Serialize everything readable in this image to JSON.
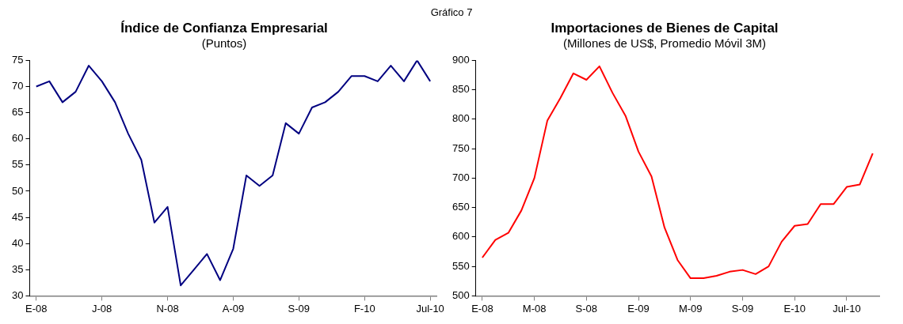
{
  "chart_data": [
    {
      "type": "line",
      "title": "Índice de Confianza Empresarial",
      "subtitle": "(Puntos)",
      "annotations": [
        "Gráfico 7"
      ],
      "categories": [
        "E-08",
        null,
        null,
        null,
        null,
        "J-08",
        null,
        null,
        null,
        null,
        "N-08",
        null,
        null,
        null,
        null,
        "A-09",
        null,
        null,
        null,
        null,
        "S-09",
        null,
        null,
        null,
        null,
        "F-10",
        null,
        null,
        null,
        null,
        "Jul-10"
      ],
      "series": [
        {
          "color": "#000080",
          "values": [
            70,
            71,
            67,
            69,
            74,
            71,
            67,
            61,
            56,
            44,
            47,
            32,
            35,
            38,
            33,
            39,
            53,
            51,
            53,
            63,
            61,
            66,
            67,
            69,
            72,
            72,
            71,
            74,
            71,
            75,
            71
          ]
        }
      ],
      "ylim": [
        30,
        75
      ],
      "yticks": [
        30,
        35,
        40,
        45,
        50,
        55,
        60,
        65,
        70,
        75
      ],
      "grid": false,
      "legend": false,
      "marker": "none"
    },
    {
      "type": "line",
      "title": "Importaciones de Bienes de Capital",
      "subtitle": "(Millones de US$, Promedio Móvil 3M)",
      "categories": [
        "E-08",
        null,
        null,
        null,
        "M-08",
        null,
        null,
        null,
        "S-08",
        null,
        null,
        null,
        "E-09",
        null,
        null,
        null,
        "M-09",
        null,
        null,
        null,
        "S-09",
        null,
        null,
        null,
        "E-10",
        null,
        null,
        null,
        "Jul-10",
        null,
        null
      ],
      "series": [
        {
          "color": "#ff0000",
          "values": [
            565,
            595,
            607,
            645,
            700,
            798,
            836,
            878,
            867,
            890,
            845,
            806,
            745,
            703,
            616,
            561,
            530,
            530,
            534,
            541,
            544,
            537,
            550,
            592,
            619,
            622,
            656,
            656,
            685,
            689,
            742
          ]
        }
      ],
      "ylim": [
        500,
        900
      ],
      "yticks": [
        500,
        550,
        600,
        650,
        700,
        750,
        800,
        850,
        900
      ],
      "grid": false,
      "legend": false,
      "marker": "none"
    }
  ]
}
